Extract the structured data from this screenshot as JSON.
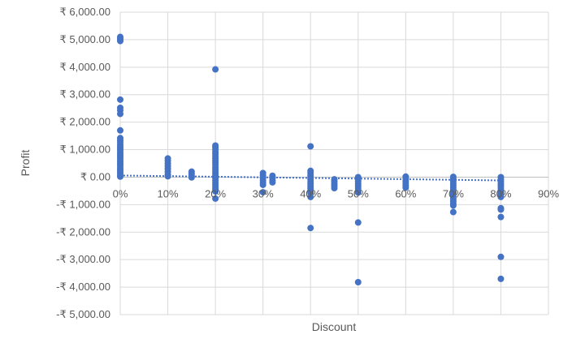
{
  "chart_data": {
    "type": "scatter",
    "title": "",
    "xlabel": "Discount",
    "ylabel": "Profit",
    "xlim": [
      0,
      0.9
    ],
    "ylim": [
      -5000,
      6000
    ],
    "x_ticks": [
      {
        "value": 0,
        "label": "0%"
      },
      {
        "value": 0.1,
        "label": "10%"
      },
      {
        "value": 0.2,
        "label": "20%"
      },
      {
        "value": 0.3,
        "label": "30%"
      },
      {
        "value": 0.4,
        "label": "40%"
      },
      {
        "value": 0.5,
        "label": "50%"
      },
      {
        "value": 0.6,
        "label": "60%"
      },
      {
        "value": 0.7,
        "label": "70%"
      },
      {
        "value": 0.8,
        "label": "80%"
      },
      {
        "value": 0.9,
        "label": "90%"
      }
    ],
    "y_ticks": [
      {
        "value": 6000,
        "label": "₹ 6,000.00"
      },
      {
        "value": 5000,
        "label": "₹ 5,000.00"
      },
      {
        "value": 4000,
        "label": "₹ 4,000.00"
      },
      {
        "value": 3000,
        "label": "₹ 3,000.00"
      },
      {
        "value": 2000,
        "label": "₹ 2,000.00"
      },
      {
        "value": 1000,
        "label": "₹ 1,000.00"
      },
      {
        "value": 0,
        "label": "₹ 0.00"
      },
      {
        "value": -1000,
        "label": "-₹ 1,000.00"
      },
      {
        "value": -2000,
        "label": "-₹ 2,000.00"
      },
      {
        "value": -3000,
        "label": "-₹ 3,000.00"
      },
      {
        "value": -4000,
        "label": "-₹ 4,000.00"
      },
      {
        "value": -5000,
        "label": "-₹ 5,000.00"
      }
    ],
    "grid": true,
    "legend": "none",
    "marker_color": "#4472C4",
    "trendline": {
      "type": "linear",
      "style": "dotted",
      "color": "#4472C4",
      "x": [
        0,
        0.8
      ],
      "y": [
        60,
        -120
      ]
    },
    "series": [
      {
        "points": [
          [
            0,
            5100
          ],
          [
            0,
            5050
          ],
          [
            0,
            5000
          ],
          [
            0,
            4950
          ],
          [
            0,
            2820
          ],
          [
            0,
            2520
          ],
          [
            0,
            2430
          ],
          [
            0,
            2300
          ],
          [
            0,
            1700
          ],
          [
            0,
            1420
          ],
          [
            0,
            1350
          ],
          [
            0,
            1280
          ],
          [
            0,
            1200
          ],
          [
            0,
            1130
          ],
          [
            0,
            1060
          ],
          [
            0,
            990
          ],
          [
            0,
            920
          ],
          [
            0,
            850
          ],
          [
            0,
            780
          ],
          [
            0,
            710
          ],
          [
            0,
            640
          ],
          [
            0,
            570
          ],
          [
            0,
            500
          ],
          [
            0,
            430
          ],
          [
            0,
            360
          ],
          [
            0,
            290
          ],
          [
            0,
            220
          ],
          [
            0,
            150
          ],
          [
            0,
            80
          ],
          [
            0,
            20
          ],
          [
            0.1,
            680
          ],
          [
            0.1,
            600
          ],
          [
            0.1,
            500
          ],
          [
            0.1,
            400
          ],
          [
            0.1,
            300
          ],
          [
            0.1,
            200
          ],
          [
            0.1,
            100
          ],
          [
            0.1,
            30
          ],
          [
            0.15,
            200
          ],
          [
            0.15,
            120
          ],
          [
            0.15,
            50
          ],
          [
            0.15,
            -10
          ],
          [
            0.2,
            3920
          ],
          [
            0.2,
            1150
          ],
          [
            0.2,
            1080
          ],
          [
            0.2,
            1000
          ],
          [
            0.2,
            920
          ],
          [
            0.2,
            840
          ],
          [
            0.2,
            760
          ],
          [
            0.2,
            680
          ],
          [
            0.2,
            600
          ],
          [
            0.2,
            520
          ],
          [
            0.2,
            440
          ],
          [
            0.2,
            360
          ],
          [
            0.2,
            280
          ],
          [
            0.2,
            200
          ],
          [
            0.2,
            120
          ],
          [
            0.2,
            40
          ],
          [
            0.2,
            -40
          ],
          [
            0.2,
            -120
          ],
          [
            0.2,
            -200
          ],
          [
            0.2,
            -280
          ],
          [
            0.2,
            -360
          ],
          [
            0.2,
            -440
          ],
          [
            0.2,
            -520
          ],
          [
            0.2,
            -780
          ],
          [
            0.3,
            150
          ],
          [
            0.3,
            60
          ],
          [
            0.3,
            -30
          ],
          [
            0.3,
            -120
          ],
          [
            0.3,
            -200
          ],
          [
            0.3,
            -280
          ],
          [
            0.3,
            -550
          ],
          [
            0.32,
            50
          ],
          [
            0.32,
            -30
          ],
          [
            0.32,
            -110
          ],
          [
            0.32,
            -190
          ],
          [
            0.4,
            1120
          ],
          [
            0.4,
            230
          ],
          [
            0.4,
            150
          ],
          [
            0.4,
            70
          ],
          [
            0.4,
            -10
          ],
          [
            0.4,
            -90
          ],
          [
            0.4,
            -170
          ],
          [
            0.4,
            -250
          ],
          [
            0.4,
            -330
          ],
          [
            0.4,
            -410
          ],
          [
            0.4,
            -490
          ],
          [
            0.4,
            -570
          ],
          [
            0.4,
            -720
          ],
          [
            0.4,
            -1850
          ],
          [
            0.45,
            -80
          ],
          [
            0.45,
            -160
          ],
          [
            0.45,
            -240
          ],
          [
            0.45,
            -320
          ],
          [
            0.45,
            -400
          ],
          [
            0.5,
            0
          ],
          [
            0.5,
            -80
          ],
          [
            0.5,
            -160
          ],
          [
            0.5,
            -240
          ],
          [
            0.5,
            -320
          ],
          [
            0.5,
            -400
          ],
          [
            0.5,
            -480
          ],
          [
            0.5,
            -560
          ],
          [
            0.5,
            -1650
          ],
          [
            0.5,
            -3820
          ],
          [
            0.6,
            20
          ],
          [
            0.6,
            -60
          ],
          [
            0.6,
            -140
          ],
          [
            0.6,
            -220
          ],
          [
            0.6,
            -300
          ],
          [
            0.6,
            -380
          ],
          [
            0.7,
            10
          ],
          [
            0.7,
            -70
          ],
          [
            0.7,
            -150
          ],
          [
            0.7,
            -230
          ],
          [
            0.7,
            -310
          ],
          [
            0.7,
            -390
          ],
          [
            0.7,
            -470
          ],
          [
            0.7,
            -550
          ],
          [
            0.7,
            -630
          ],
          [
            0.7,
            -710
          ],
          [
            0.7,
            -790
          ],
          [
            0.7,
            -870
          ],
          [
            0.7,
            -950
          ],
          [
            0.7,
            -1030
          ],
          [
            0.7,
            -1270
          ],
          [
            0.8,
            0
          ],
          [
            0.8,
            -80
          ],
          [
            0.8,
            -160
          ],
          [
            0.8,
            -240
          ],
          [
            0.8,
            -320
          ],
          [
            0.8,
            -400
          ],
          [
            0.8,
            -480
          ],
          [
            0.8,
            -560
          ],
          [
            0.8,
            -640
          ],
          [
            0.8,
            -720
          ],
          [
            0.8,
            -1130
          ],
          [
            0.8,
            -1180
          ],
          [
            0.8,
            -1450
          ],
          [
            0.8,
            -2900
          ],
          [
            0.8,
            -3700
          ]
        ]
      }
    ]
  }
}
